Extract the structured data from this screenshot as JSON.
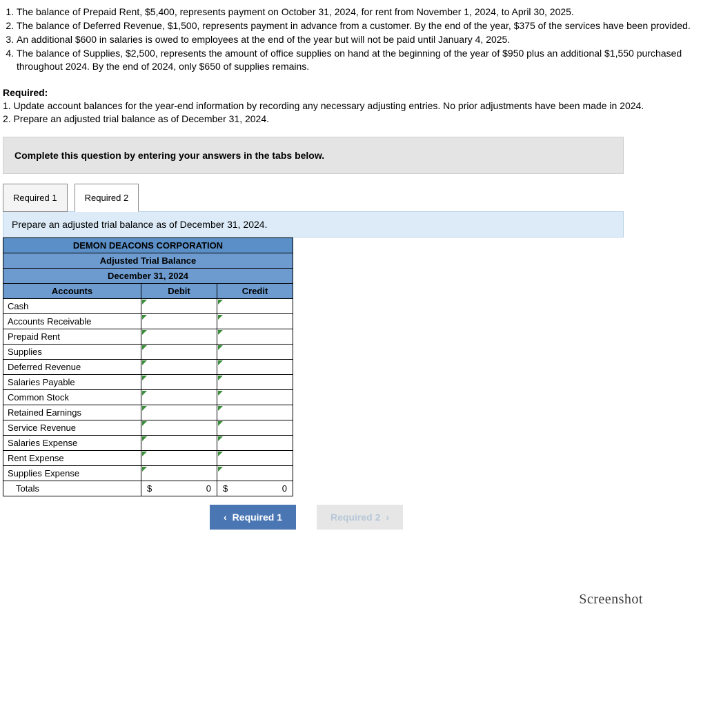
{
  "intro_items": [
    "The balance of Prepaid Rent, $5,400, represents payment on October 31, 2024, for rent from November 1, 2024, to April 30, 2025.",
    "The balance of  Deferred Revenue, $1,500, represents payment in advance from a customer. By the end of the year, $375 of the services have been provided.",
    "An additional $600 in salaries is owed to employees at the end of the year but will not be paid until January 4, 2025.",
    "The balance of Supplies, $2,500, represents the amount of office supplies on hand at the beginning of the year of $950 plus an additional $1,550 purchased throughout 2024. By the end of 2024, only $650 of supplies remains."
  ],
  "required": {
    "heading": "Required:",
    "lines": [
      "1. Update account balances for the year-end information by recording any necessary adjusting entries. No prior adjustments have been made in 2024.",
      "2. Prepare an adjusted trial balance as of December 31, 2024."
    ]
  },
  "instruction_bar": "Complete this question by entering your answers in the tabs below.",
  "tabs": {
    "req1": "Required 1",
    "req2": "Required 2"
  },
  "sub_instruction": "Prepare an adjusted trial balance as of December 31, 2024.",
  "table": {
    "company": "DEMON DEACONS CORPORATION",
    "title": "Adjusted Trial Balance",
    "date": "December 31, 2024",
    "col_accounts": "Accounts",
    "col_debit": "Debit",
    "col_credit": "Credit",
    "accounts": [
      "Cash",
      "Accounts Receivable",
      "Prepaid Rent",
      "Supplies",
      "Deferred Revenue",
      "Salaries Payable",
      "Common Stock",
      "Retained Earnings",
      "Service Revenue",
      "Salaries Expense",
      "Rent Expense",
      "Supplies Expense"
    ],
    "totals_label": "Totals",
    "currency": "$",
    "debit_total": "0",
    "credit_total": "0"
  },
  "nav": {
    "prev": "Required 1",
    "next": "Required 2"
  },
  "footer": {
    "screenshot": "Screenshot"
  },
  "colors": {
    "header_bg": "#5b8fc7",
    "subheader_bg": "#6d9bcf",
    "instruction_bg": "#e4e4e4",
    "subinstr_bg": "#dcebf7",
    "nav_prev_bg": "#4a77b4",
    "nav_next_bg": "#e6e6e6"
  }
}
